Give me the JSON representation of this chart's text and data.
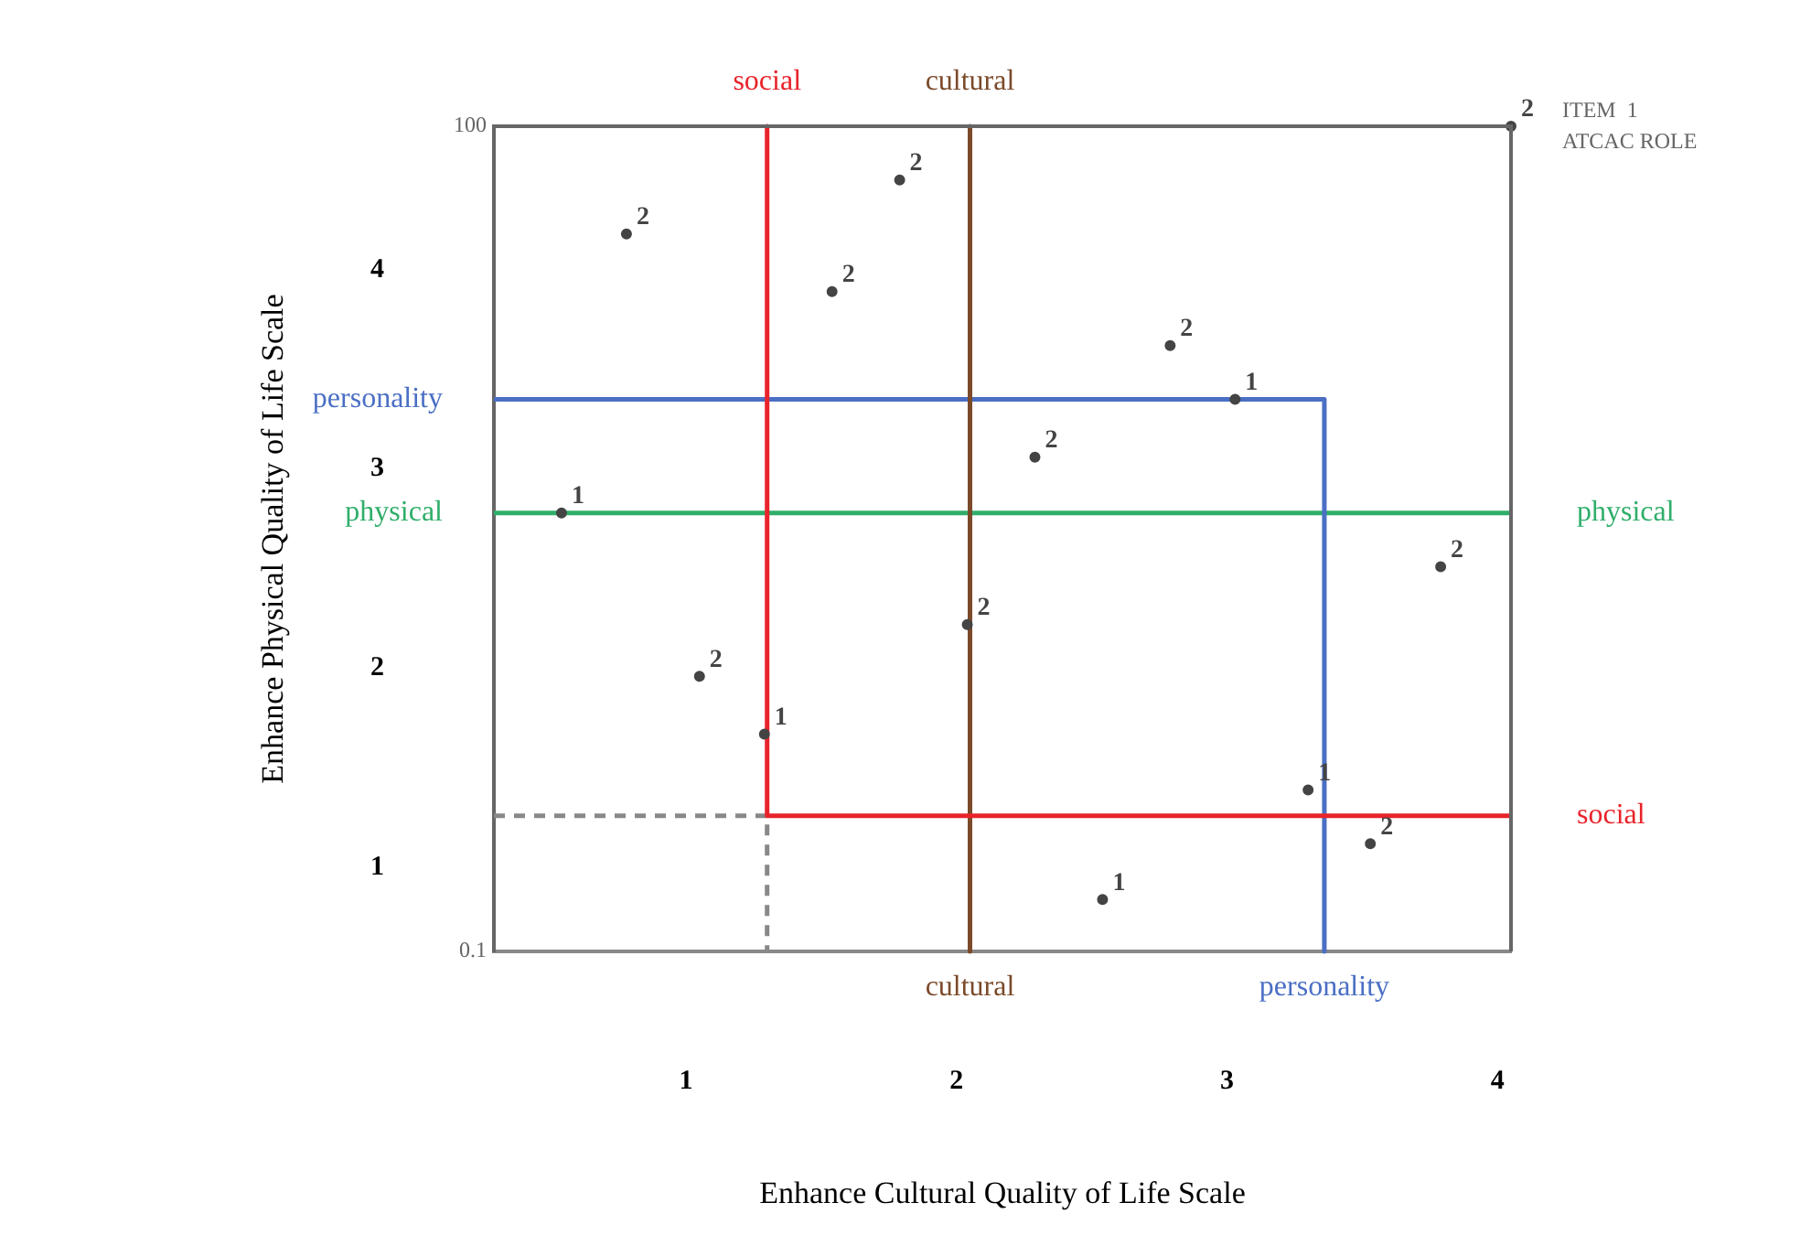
{
  "chart_data": {
    "type": "scatter",
    "xlabel": "Enhance Cultural Quality of Life Scale",
    "ylabel": "Enhance Physical Quality of Life Scale",
    "xlim": [
      0.29,
      4.05
    ],
    "ylim": [
      0.58,
      4.72
    ],
    "xticks": [
      1,
      2,
      3,
      4
    ],
    "yticks": [
      1,
      2,
      3,
      4
    ],
    "grid": false,
    "legend": false,
    "annotations": [
      "100",
      "0.1",
      "ITEM  1",
      "ATCAC ROLE"
    ],
    "series": [
      {
        "name": "2",
        "color": "#444444",
        "marker": "circle",
        "x": [
          0.78,
          1.79,
          1.54,
          2.79,
          2.29,
          3.79,
          2.04,
          1.05,
          3.53,
          4.05
        ],
        "values": [
          4.18,
          4.45,
          3.89,
          3.62,
          3.06,
          2.51,
          2.22,
          1.96,
          1.12,
          4.72
        ]
      },
      {
        "name": "1",
        "color": "#444444",
        "marker": "circle",
        "x": [
          3.03,
          0.54,
          1.29,
          3.3,
          2.54
        ],
        "values": [
          3.35,
          2.78,
          1.67,
          1.39,
          0.84
        ]
      },
      {
        "type": "line",
        "name": "social",
        "color": "#e8232a",
        "x": [
          1.3,
          1.3,
          4.05
        ],
        "values": [
          4.72,
          1.26,
          1.26
        ]
      },
      {
        "type": "line",
        "name": "cultural",
        "color": "#7b4a2a",
        "x": [
          2.05,
          2.05
        ],
        "values": [
          4.72,
          0.58
        ]
      },
      {
        "type": "line",
        "name": "personality",
        "color": "#4a6fc4",
        "x": [
          0.29,
          3.36,
          3.36
        ],
        "values": [
          3.35,
          3.35,
          0.58
        ]
      },
      {
        "type": "line",
        "name": "physical",
        "color": "#2fae6a",
        "x": [
          0.29,
          4.05
        ],
        "values": [
          2.78,
          2.78
        ]
      },
      {
        "type": "line",
        "color": "#888888",
        "line_style": "dashed",
        "x": [
          0.29,
          1.3,
          1.3
        ],
        "values": [
          1.26,
          1.26,
          0.58
        ]
      }
    ]
  }
}
